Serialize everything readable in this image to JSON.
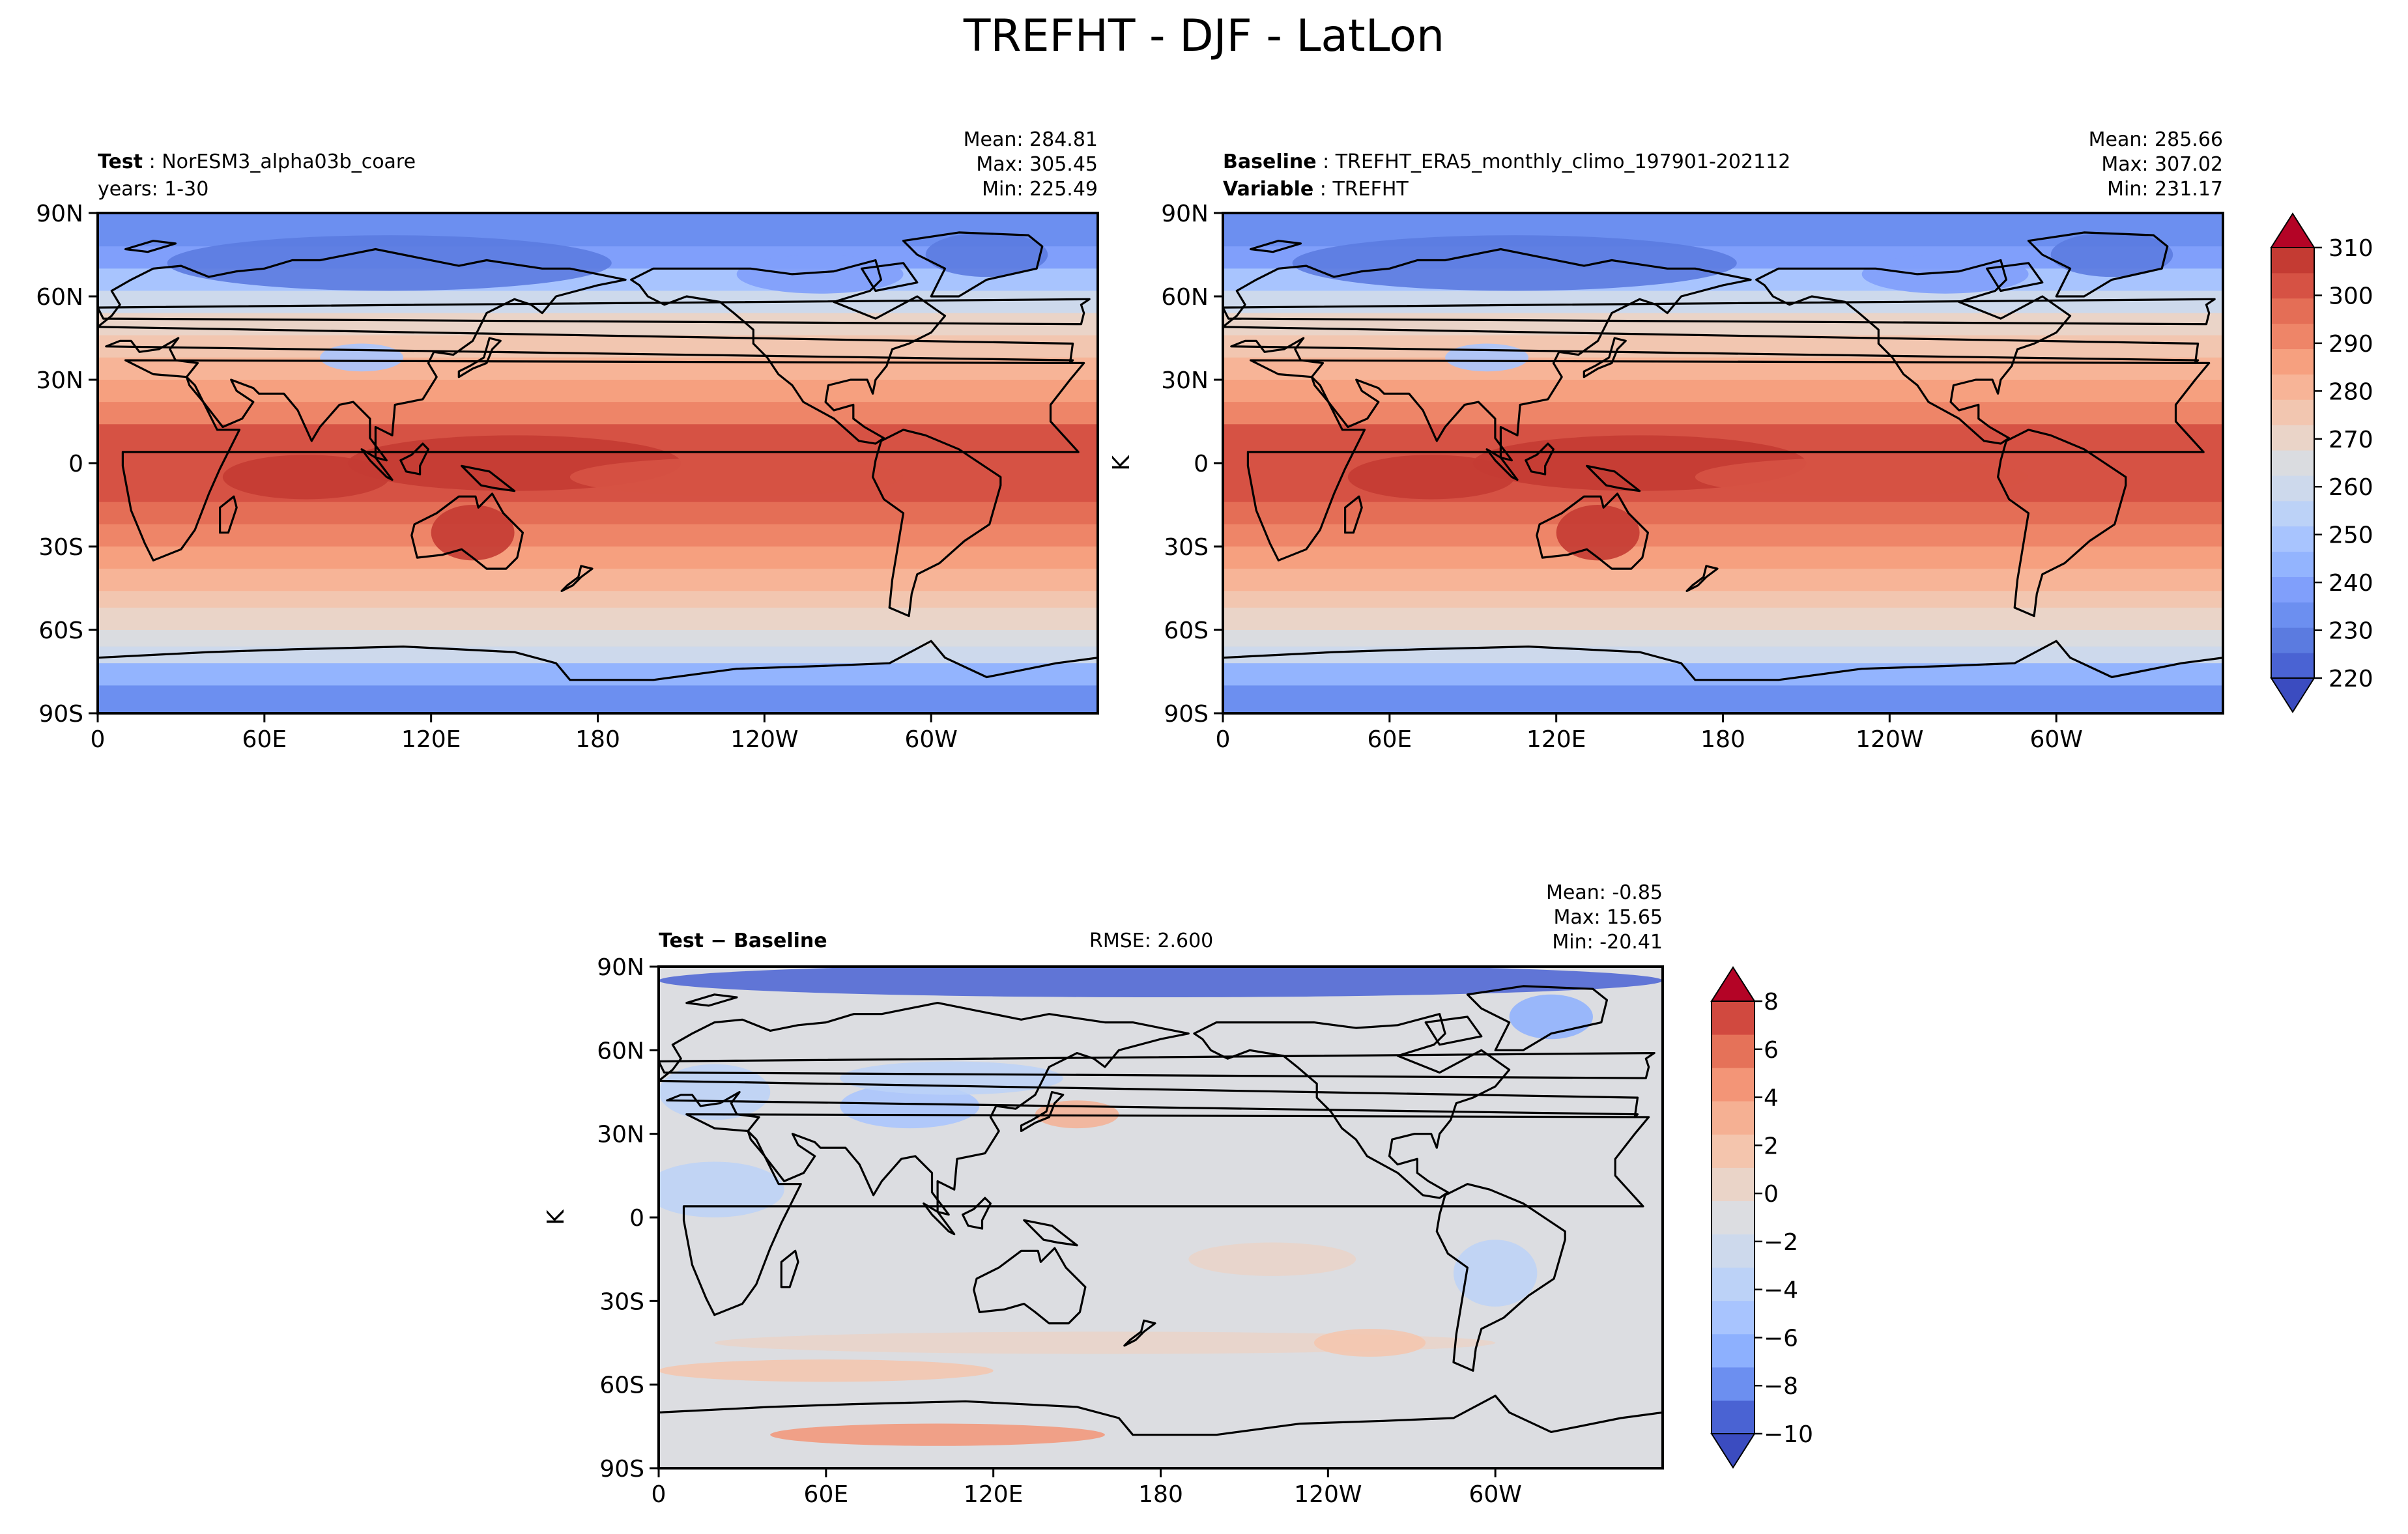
{
  "figure": {
    "title": "TREFHT - DJF - LatLon"
  },
  "colors": {
    "abs_scale": [
      "#3b4cc0",
      "#4a63d3",
      "#5b7be0",
      "#6c8ff0",
      "#809ffb",
      "#93b4fe",
      "#a8c4fe",
      "#bcd2f7",
      "#cdd9ec",
      "#dadce0",
      "#ead4c8",
      "#f2c6b0",
      "#f7b497",
      "#f6a07f",
      "#ee8568",
      "#e46e56",
      "#d65244",
      "#c43b33",
      "#b40426"
    ],
    "diff_scale": [
      "#3b4cc0",
      "#4a63d3",
      "#6c8ff0",
      "#8db0fe",
      "#a8c4fe",
      "#bcd2f7",
      "#cdd9ec",
      "#dcdde1",
      "#ead4c8",
      "#f4c5ad",
      "#f5b093",
      "#f39577",
      "#e57259",
      "#d1493f",
      "#b40426"
    ],
    "coast": "#000000"
  },
  "panels": {
    "test": {
      "label_bold": "Test",
      "label_text": "NorESM3_alpha03b_coare",
      "line2": "years: 1-30",
      "stats": [
        "Mean: 284.81",
        "Max: 305.45",
        "Min: 225.49"
      ]
    },
    "baseline": {
      "label_bold": "Baseline",
      "label_text": "TREFHT_ERA5_monthly_climo_197901-202112",
      "line2_bold": "Variable",
      "line2_text": "TREFHT",
      "stats": [
        "Mean: 285.66",
        "Max: 307.02",
        "Min: 231.17"
      ],
      "unit": "K"
    },
    "diff": {
      "label_bold": "Test − Baseline",
      "rmse": "RMSE: 2.600",
      "stats": [
        "Mean: -0.85",
        "Max: 15.65",
        "Min: -20.41"
      ],
      "unit": "K"
    }
  },
  "chart_data": [
    {
      "type": "heatmap",
      "title": "Test: NorESM3_alpha03b_coare",
      "field": "TREFHT",
      "xlabel": "",
      "ylabel": "",
      "xlim": [
        0,
        360
      ],
      "ylim": [
        -90,
        90
      ],
      "x_ticks": [
        "0",
        "60E",
        "120E",
        "180",
        "120W",
        "60W"
      ],
      "y_ticks": [
        "90N",
        "60N",
        "30N",
        "0",
        "30S",
        "60S",
        "90S"
      ],
      "stats": {
        "mean": 284.81,
        "max": 305.45,
        "min": 225.49
      },
      "colorbar": {
        "ticks": [
          "310",
          "300",
          "290",
          "280",
          "270",
          "260",
          "250",
          "240",
          "230",
          "220"
        ],
        "range": [
          220,
          310
        ],
        "unit": "K"
      }
    },
    {
      "type": "heatmap",
      "title": "Baseline: TREFHT_ERA5_monthly_climo_197901-202112",
      "field": "TREFHT",
      "xlim": [
        0,
        360
      ],
      "ylim": [
        -90,
        90
      ],
      "x_ticks": [
        "0",
        "60E",
        "120E",
        "180",
        "120W",
        "60W"
      ],
      "y_ticks": [
        "90N",
        "60N",
        "30N",
        "0",
        "30S",
        "60S",
        "90S"
      ],
      "stats": {
        "mean": 285.66,
        "max": 307.02,
        "min": 231.17
      }
    },
    {
      "type": "heatmap",
      "title": "Test - Baseline",
      "field": "TREFHT difference",
      "xlim": [
        0,
        360
      ],
      "ylim": [
        -90,
        90
      ],
      "x_ticks": [
        "0",
        "60E",
        "120E",
        "180",
        "120W",
        "60W"
      ],
      "y_ticks": [
        "90N",
        "60N",
        "30N",
        "0",
        "30S",
        "60S",
        "90S"
      ],
      "stats": {
        "mean": -0.85,
        "max": 15.65,
        "min": -20.41,
        "rmse": 2.6
      },
      "colorbar": {
        "ticks": [
          "8",
          "6",
          "4",
          "2",
          "0",
          "−2",
          "−4",
          "−6",
          "−8",
          "−10"
        ],
        "range": [
          -10,
          8
        ],
        "unit": "K"
      }
    }
  ]
}
